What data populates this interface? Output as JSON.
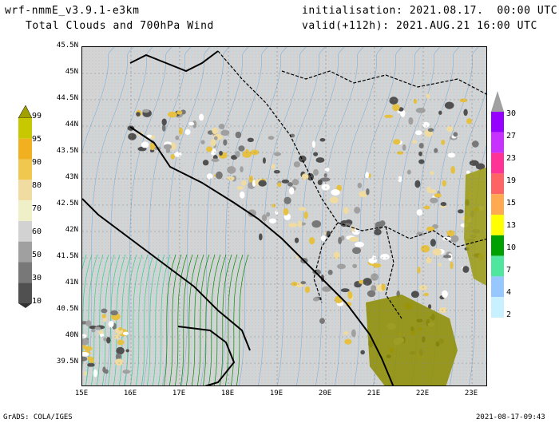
{
  "header": {
    "model": "wrf-nmmE_v3.9.1-e3km",
    "product": "Total Clouds and 700hPa Wind",
    "init": "initialisation: 2021.08.17.  00:00 UTC",
    "valid": "valid(+112h): 2021.AUG.21 16:00 UTC"
  },
  "lat_labels": [
    "45.5N",
    "45N",
    "44.5N",
    "44N",
    "43.5N",
    "43N",
    "42.5N",
    "42N",
    "41.5N",
    "41N",
    "40.5N",
    "40N",
    "39.5N"
  ],
  "lon_labels": [
    "15E",
    "16E",
    "17E",
    "18E",
    "19E",
    "20E",
    "21E",
    "22E",
    "23E"
  ],
  "cloud_scale": {
    "labels": [
      "99",
      "95",
      "90",
      "80",
      "70",
      "60",
      "50",
      "30",
      "10"
    ],
    "colors": [
      "#c8c800",
      "#f0b020",
      "#f0c850",
      "#f0dca0",
      "#f0f0c8",
      "#d2d2d2",
      "#a0a0a0",
      "#787878",
      "#505050"
    ]
  },
  "wind_scale": {
    "labels": [
      "30",
      "27",
      "23",
      "19",
      "15",
      "13",
      "10",
      "7",
      "4",
      "2"
    ],
    "colors": [
      "#9600ff",
      "#c832ff",
      "#ff3296",
      "#ff6464",
      "#ffaa50",
      "#ffff00",
      "#00a000",
      "#50e6a0",
      "#96c8ff",
      "#c8f0ff"
    ]
  },
  "footer": {
    "left": "GrADS: COLA/IGES",
    "right": "2021-08-17-09:43"
  },
  "colors": {
    "map_background": "#d9d9d9",
    "coast": "#000000",
    "streamline_light": "#b4dcf0",
    "streamline_blue": "#78b4e6",
    "streamline_green": "#32d28c",
    "streamline_dark_green": "#008c00"
  }
}
